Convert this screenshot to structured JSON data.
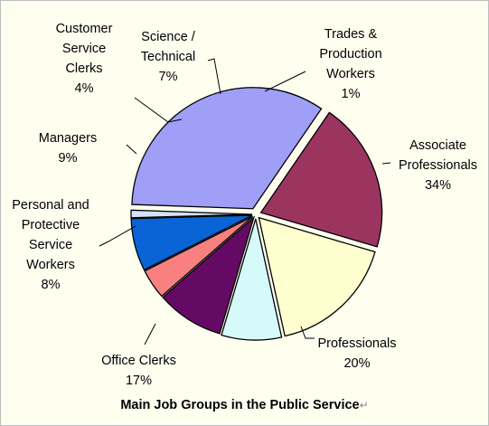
{
  "chart_data": {
    "type": "pie",
    "title": "Main Job Groups in the Public Service",
    "slices": [
      {
        "label": "Associate Professionals",
        "value": 34,
        "pct_label": "34%",
        "color": "#9f9ff8"
      },
      {
        "label": "Professionals",
        "value": 20,
        "pct_label": "20%",
        "color": "#9b3560"
      },
      {
        "label": "Office Clerks",
        "value": 17,
        "pct_label": "17%",
        "color": "#ffffd0"
      },
      {
        "label": "Personal and Protective Service Workers",
        "value": 8,
        "pct_label": "8%",
        "color": "#d6fafa"
      },
      {
        "label": "Managers",
        "value": 9,
        "pct_label": "9%",
        "color": "#640a64"
      },
      {
        "label": "Customer Service Clerks",
        "value": 4,
        "pct_label": "4%",
        "color": "#f98080"
      },
      {
        "label": "Science / Technical",
        "value": 7,
        "pct_label": "7%",
        "color": "#0a64d6"
      },
      {
        "label": "Trades & Production Workers",
        "value": 1,
        "pct_label": "1%",
        "color": "#d3e3f7"
      }
    ],
    "legend": "none",
    "grid": false
  },
  "labels": {
    "associate": "Associate\nProfessionals\n34%",
    "professionals": "Professionals\n20%",
    "office": "Office Clerks\n17%",
    "personal": "Personal and\nProtective\nService\nWorkers\n8%",
    "managers": "Managers\n9%",
    "customer": "Customer\nService\nClerks\n4%",
    "science": "Science /\nTechnical\n7%",
    "trades": "Trades &\nProduction\nWorkers\n1%"
  },
  "title_mark": "↵"
}
